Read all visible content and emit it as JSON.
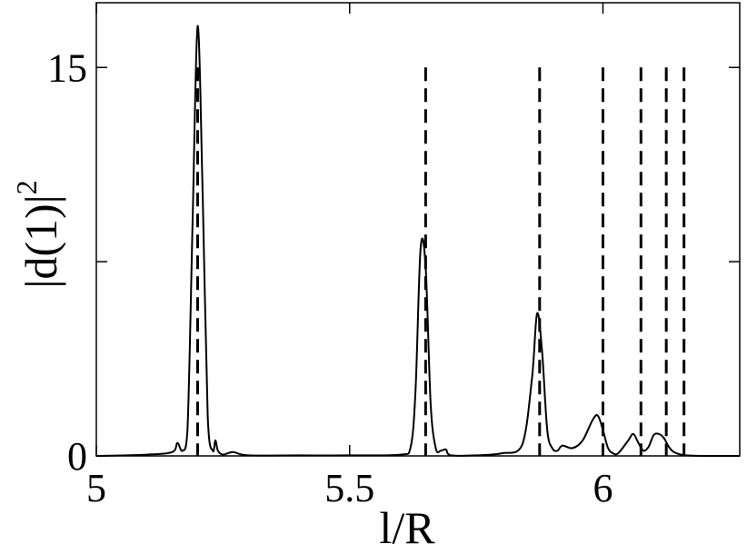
{
  "chart_data": {
    "type": "line",
    "xlabel": "l/R",
    "ylabel": "|d(1)|",
    "ylabel_superscript": "2",
    "xlim": [
      5.0,
      6.27
    ],
    "ylim": [
      0,
      17.5
    ],
    "x_ticks": [
      5,
      5.5,
      6
    ],
    "x_tick_labels": [
      "5",
      "5.5",
      "6"
    ],
    "y_ticks": [
      0,
      7.5,
      15
    ],
    "y_tick_labels": [
      "0",
      "",
      "15"
    ],
    "grid": false,
    "series": [
      {
        "style": "solid",
        "x": [
          5.0,
          5.1,
          5.15,
          5.16,
          5.17,
          5.18,
          5.19,
          5.2,
          5.21,
          5.22,
          5.23,
          5.235,
          5.24,
          5.25,
          5.27,
          5.3,
          5.4,
          5.5,
          5.6,
          5.62,
          5.63,
          5.64,
          5.65,
          5.66,
          5.67,
          5.68,
          5.69,
          5.7,
          5.75,
          5.8,
          5.84,
          5.86,
          5.87,
          5.88,
          5.89,
          5.9,
          5.91,
          5.92,
          5.94,
          5.96,
          5.98,
          5.99,
          6.0,
          6.01,
          6.02,
          6.03,
          6.05,
          6.06,
          6.07,
          6.08,
          6.09,
          6.1,
          6.11,
          6.12,
          6.13,
          6.14,
          6.16,
          6.2,
          6.27
        ],
        "y": [
          0.0,
          0.05,
          0.15,
          0.5,
          0.2,
          1.0,
          9.0,
          16.6,
          10.0,
          1.5,
          0.2,
          0.6,
          0.2,
          0.05,
          0.15,
          0.02,
          0.02,
          0.02,
          0.05,
          0.3,
          2.5,
          8.0,
          7.3,
          2.0,
          0.3,
          0.2,
          0.25,
          0.02,
          0.02,
          0.1,
          0.4,
          3.0,
          5.5,
          4.0,
          1.0,
          0.3,
          0.2,
          0.4,
          0.3,
          0.6,
          1.4,
          1.55,
          1.0,
          0.3,
          0.1,
          0.1,
          0.6,
          0.85,
          0.5,
          0.2,
          0.35,
          0.8,
          0.85,
          0.7,
          0.35,
          0.15,
          0.03,
          0.0,
          0.0
        ]
      }
    ],
    "reference_lines": {
      "style": "dashed",
      "y_top": 15,
      "x": [
        5.2,
        5.65,
        5.875,
        6.0,
        6.075,
        6.125,
        6.16
      ]
    }
  }
}
